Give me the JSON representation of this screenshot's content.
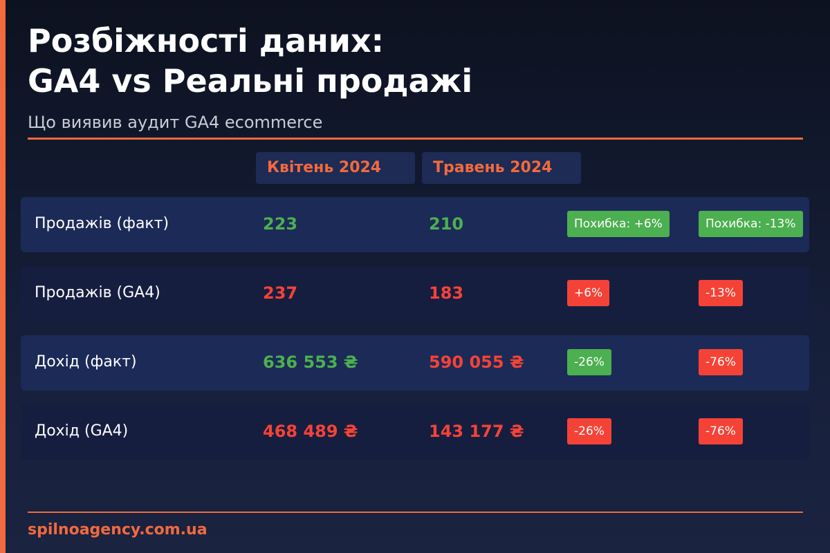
{
  "header": {
    "title_line1": "Розбіжності даних:",
    "title_line2": "GA4 vs Реальні продажі",
    "subtitle": "Що виявив аудит GA4 ecommerce"
  },
  "columns": [
    "Квітень 2024",
    "Травень 2024"
  ],
  "rows": [
    {
      "label": "Продажів (факт)",
      "april": "223",
      "may": "210",
      "badge_april": "Похибка: +6%",
      "badge_may": "Похибка: -13%"
    },
    {
      "label": "Продажів (GA4)",
      "april": "237",
      "may": "183",
      "badge_april": "+6%",
      "badge_may": "-13%"
    },
    {
      "label": "Дохід (факт)",
      "april": "636 553 ₴",
      "may": "590 055 ₴",
      "badge_april": "-26%",
      "badge_may": "-76%"
    },
    {
      "label": "Дохід (GA4)",
      "april": "468 489 ₴",
      "may": "143 177 ₴",
      "badge_april": "-26%",
      "badge_may": "-76%"
    }
  ],
  "footer": {
    "site": "spilnoagency.com.ua"
  },
  "colors": {
    "accent": "#f26a3d",
    "positive": "#4caf50",
    "negative": "#f44336",
    "background": "#161f3a"
  }
}
